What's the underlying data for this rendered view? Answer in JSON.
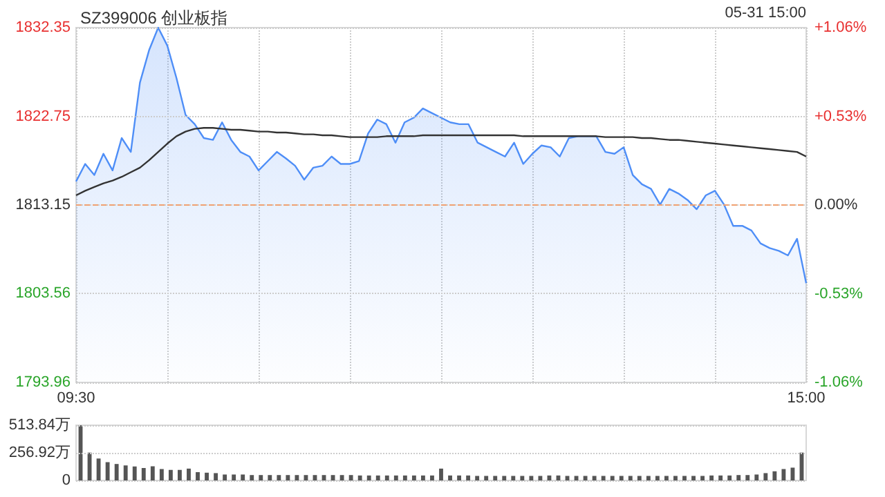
{
  "chart_data": [
    {
      "type": "line",
      "title": "SZ399006 创业板指",
      "annotations": [
        "05-31 15:00"
      ],
      "categories": [
        "09:30",
        null,
        null,
        null,
        null,
        null,
        null,
        null,
        null,
        null,
        null,
        null,
        null,
        null,
        null,
        null,
        null,
        null,
        null,
        null,
        null,
        null,
        null,
        null,
        null,
        null,
        null,
        null,
        null,
        null,
        null,
        null,
        null,
        null,
        null,
        null,
        null,
        null,
        null,
        null,
        null,
        null,
        null,
        null,
        null,
        null,
        null,
        null,
        null,
        null,
        null,
        null,
        null,
        null,
        null,
        null,
        null,
        null,
        null,
        null,
        null,
        null,
        null,
        null,
        null,
        null,
        null,
        null,
        null,
        null,
        null,
        null,
        null,
        null,
        null,
        null,
        null,
        null,
        null,
        null,
        "15:00"
      ],
      "series": [
        {
          "type": "area",
          "color": "#4e8ef7",
          "values": [
            1815.7,
            1817.6,
            1816.4,
            1818.7,
            1816.9,
            1820.4,
            1818.9,
            1826.4,
            1829.9,
            1832.35,
            1830.4,
            1826.9,
            1822.9,
            1821.9,
            1820.4,
            1820.2,
            1822.1,
            1820.2,
            1818.9,
            1818.4,
            1816.9,
            1817.9,
            1818.9,
            1818.2,
            1817.4,
            1815.9,
            1817.2,
            1817.4,
            1818.4,
            1817.6,
            1817.6,
            1817.9,
            1820.9,
            1822.4,
            1821.9,
            1819.9,
            1822.1,
            1822.6,
            1823.6,
            1823.1,
            1822.6,
            1822.1,
            1821.9,
            1821.9,
            1819.9,
            1819.4,
            1818.9,
            1818.4,
            1819.9,
            1817.6,
            1818.7,
            1819.6,
            1819.4,
            1818.4,
            1820.4,
            1820.6,
            1820.6,
            1820.6,
            1818.9,
            1818.7,
            1819.4,
            1816.4,
            1815.4,
            1814.9,
            1813.2,
            1814.9,
            1814.4,
            1813.7,
            1812.7,
            1814.2,
            1814.7,
            1813.2,
            1810.9,
            1810.9,
            1810.4,
            1809.0,
            1808.5,
            1808.2,
            1807.7,
            1809.5,
            1804.7
          ]
        },
        {
          "type": "line",
          "color": "#333333",
          "values": [
            1814.2,
            1814.7,
            1815.1,
            1815.5,
            1815.8,
            1816.2,
            1816.7,
            1817.2,
            1818.0,
            1818.9,
            1819.8,
            1820.6,
            1821.1,
            1821.4,
            1821.5,
            1821.5,
            1821.4,
            1821.3,
            1821.3,
            1821.2,
            1821.1,
            1821.1,
            1821.0,
            1821.0,
            1820.9,
            1820.8,
            1820.8,
            1820.7,
            1820.7,
            1820.6,
            1820.5,
            1820.5,
            1820.5,
            1820.5,
            1820.6,
            1820.6,
            1820.6,
            1820.6,
            1820.7,
            1820.7,
            1820.7,
            1820.7,
            1820.7,
            1820.7,
            1820.7,
            1820.7,
            1820.7,
            1820.7,
            1820.7,
            1820.6,
            1820.6,
            1820.6,
            1820.6,
            1820.6,
            1820.6,
            1820.6,
            1820.6,
            1820.6,
            1820.5,
            1820.5,
            1820.5,
            1820.5,
            1820.4,
            1820.4,
            1820.3,
            1820.2,
            1820.2,
            1820.1,
            1820.0,
            1819.9,
            1819.8,
            1819.7,
            1819.6,
            1819.5,
            1819.4,
            1819.3,
            1819.2,
            1819.1,
            1819.0,
            1818.9,
            1818.4
          ]
        }
      ],
      "ylim": [
        1793.96,
        1832.35
      ],
      "yticks": [
        1793.96,
        1803.56,
        1813.15,
        1822.75,
        1832.35
      ],
      "y2lim": [
        -1.06,
        1.06
      ],
      "y2ticks": [
        {
          "value": -1.06,
          "label": "-1.06%"
        },
        {
          "value": -0.53,
          "label": "-0.53%"
        },
        {
          "value": 0,
          "label": "0.00%"
        },
        {
          "value": 0.53,
          "label": "+0.53%"
        },
        {
          "value": 1.06,
          "label": "+1.06%"
        }
      ],
      "ref_lines": [
        {
          "axis": "y",
          "value": 1813.15,
          "color": "#f0a070",
          "line_style": "dashed"
        }
      ],
      "grid": true,
      "marker": "none"
    },
    {
      "type": "bar",
      "color": "#555555",
      "tick_labels": "y",
      "grid": "y",
      "categories": [
        null,
        null,
        null,
        null,
        null,
        null,
        null,
        null,
        null,
        null,
        null,
        null,
        null,
        null,
        null,
        null,
        null,
        null,
        null,
        null,
        null,
        null,
        null,
        null,
        null,
        null,
        null,
        null,
        null,
        null,
        null,
        null,
        null,
        null,
        null,
        null,
        null,
        null,
        null,
        null,
        null,
        null,
        null,
        null,
        null,
        null,
        null,
        null,
        null,
        null,
        null,
        null,
        null,
        null,
        null,
        null,
        null,
        null,
        null,
        null,
        null,
        null,
        null,
        null,
        null,
        null,
        null,
        null,
        null,
        null,
        null,
        null,
        null,
        null,
        null,
        null,
        null,
        null,
        null,
        null,
        null
      ],
      "values": [
        513.84,
        259,
        204,
        170,
        153,
        140,
        130,
        115,
        132,
        106,
        98,
        98,
        110,
        77,
        72,
        68,
        55,
        55,
        55,
        50,
        50,
        50,
        50,
        50,
        50,
        50,
        50,
        50,
        50,
        50,
        50,
        46,
        46,
        46,
        46,
        46,
        46,
        46,
        46,
        46,
        110,
        46,
        46,
        46,
        42,
        42,
        42,
        42,
        42,
        42,
        42,
        42,
        46,
        46,
        42,
        42,
        42,
        42,
        42,
        42,
        42,
        42,
        42,
        42,
        42,
        42,
        42,
        42,
        42,
        42,
        46,
        46,
        46,
        50,
        50,
        55,
        68,
        85,
        106,
        119,
        259
      ],
      "ylim": [
        0,
        513.84
      ],
      "yticks": [
        0,
        {
          "value": 256.92,
          "label": "256.92万"
        },
        {
          "value": 513.84,
          "label": "513.84万"
        }
      ]
    }
  ]
}
